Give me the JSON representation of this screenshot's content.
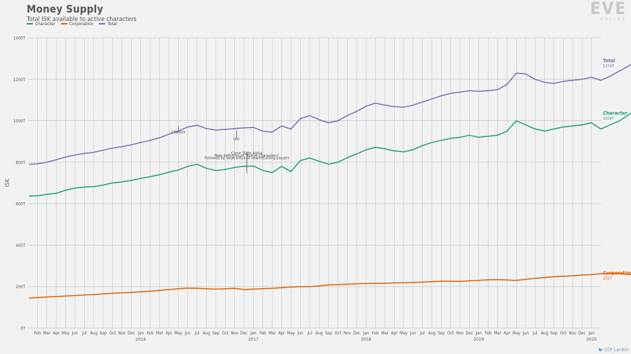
{
  "header": {
    "title": "Money Supply",
    "subtitle": "Total ISK available to active characters",
    "logo_text": "EVE",
    "logo_sub": "ONLINE",
    "credit": "CCP_Larrikin"
  },
  "chart_data": {
    "type": "line",
    "title": "Money Supply",
    "subtitle": "Total ISK available to active characters",
    "ylabel": "ISK",
    "xlabel": "",
    "ylim": [
      0,
      1400
    ],
    "y_ticks": [
      "0T",
      "200T",
      "400T",
      "600T",
      "800T",
      "1000T",
      "1200T",
      "1400T"
    ],
    "x_months": [
      "Feb",
      "Mar",
      "Apr",
      "May",
      "Jun",
      "Jul",
      "Aug",
      "Sep",
      "Oct",
      "Nov",
      "Dec",
      "Jan",
      "Feb",
      "Mar",
      "Apr",
      "May",
      "Jun",
      "Jul",
      "Aug",
      "Sep",
      "Oct",
      "Nov",
      "Dec",
      "Jan",
      "Feb",
      "Mar",
      "Apr",
      "May",
      "Jun",
      "Jul",
      "Aug",
      "Sep",
      "Oct",
      "Nov",
      "Dec",
      "Jan",
      "Feb",
      "Mar",
      "Apr",
      "May",
      "Jun",
      "Jul",
      "Aug",
      "Sep",
      "Oct",
      "Nov",
      "Dec",
      "Jan",
      "Feb",
      "Mar",
      "Apr",
      "May",
      "Jun",
      "Jul",
      "Aug",
      "Sep",
      "Oct",
      "Nov",
      "Dec",
      "Jan"
    ],
    "x_years": [
      {
        "label": "2016",
        "month_index": 11
      },
      {
        "label": "2017",
        "month_index": 23
      },
      {
        "label": "2018",
        "month_index": 35
      },
      {
        "label": "2019",
        "month_index": 47
      },
      {
        "label": "2020",
        "month_index": 59
      }
    ],
    "grid": true,
    "legend_position": "top-left",
    "series": [
      {
        "name": "Character",
        "color": "#1b9e77",
        "end_label": "Character",
        "end_value": "1026T",
        "values": [
          [
            -0.9,
            637
          ],
          [
            0,
            638
          ],
          [
            1,
            645
          ],
          [
            2,
            650
          ],
          [
            3,
            665
          ],
          [
            4,
            675
          ],
          [
            5,
            680
          ],
          [
            6,
            682
          ],
          [
            7,
            690
          ],
          [
            8,
            700
          ],
          [
            9,
            705
          ],
          [
            10,
            712
          ],
          [
            11,
            722
          ],
          [
            12,
            730
          ],
          [
            13,
            740
          ],
          [
            14,
            752
          ],
          [
            15,
            762
          ],
          [
            16,
            780
          ],
          [
            17,
            790
          ],
          [
            18,
            770
          ],
          [
            19,
            760
          ],
          [
            20,
            765
          ],
          [
            21,
            775
          ],
          [
            22,
            780
          ],
          [
            23,
            782
          ],
          [
            24,
            760
          ],
          [
            25,
            750
          ],
          [
            26,
            780
          ],
          [
            27,
            755
          ],
          [
            28,
            808
          ],
          [
            29,
            820
          ],
          [
            30,
            805
          ],
          [
            31,
            790
          ],
          [
            32,
            800
          ],
          [
            33,
            822
          ],
          [
            34,
            840
          ],
          [
            35,
            860
          ],
          [
            36,
            872
          ],
          [
            37,
            865
          ],
          [
            38,
            855
          ],
          [
            39,
            850
          ],
          [
            40,
            860
          ],
          [
            41,
            880
          ],
          [
            42,
            895
          ],
          [
            43,
            905
          ],
          [
            44,
            915
          ],
          [
            45,
            920
          ],
          [
            46,
            930
          ],
          [
            47,
            920
          ],
          [
            48,
            925
          ],
          [
            49,
            930
          ],
          [
            50,
            950
          ],
          [
            51,
            1000
          ],
          [
            52,
            980
          ],
          [
            53,
            960
          ],
          [
            54,
            950
          ],
          [
            55,
            960
          ],
          [
            56,
            970
          ],
          [
            57,
            975
          ],
          [
            58,
            980
          ],
          [
            59,
            990
          ],
          [
            60,
            960
          ],
          [
            61,
            980
          ],
          [
            62,
            1000
          ],
          [
            63,
            1030
          ],
          [
            64,
            1060
          ],
          [
            65,
            1080
          ],
          [
            66,
            1040
          ],
          [
            67,
            1060
          ],
          [
            68,
            1060
          ],
          [
            69,
            1080
          ],
          [
            70,
            1065
          ],
          [
            71,
            1105
          ],
          [
            72,
            1130
          ],
          [
            73,
            1100
          ],
          [
            74,
            1080
          ],
          [
            75,
            1060
          ],
          [
            76,
            1040
          ],
          [
            77,
            1000
          ],
          [
            78,
            975
          ],
          [
            79,
            970
          ],
          [
            80,
            975
          ],
          [
            81,
            980
          ],
          [
            82,
            965
          ],
          [
            83,
            1010
          ],
          [
            84,
            1026
          ]
        ]
      },
      {
        "name": "Corporation",
        "color": "#d95f02",
        "end_label": "Corporation",
        "end_value": "255T",
        "values": [
          [
            -0.9,
            145
          ],
          [
            0,
            147
          ],
          [
            1,
            150
          ],
          [
            2,
            152
          ],
          [
            3,
            155
          ],
          [
            4,
            157
          ],
          [
            5,
            160
          ],
          [
            6,
            162
          ],
          [
            7,
            165
          ],
          [
            8,
            168
          ],
          [
            9,
            170
          ],
          [
            10,
            172
          ],
          [
            11,
            175
          ],
          [
            12,
            178
          ],
          [
            13,
            182
          ],
          [
            14,
            186
          ],
          [
            15,
            190
          ],
          [
            16,
            193
          ],
          [
            17,
            192
          ],
          [
            18,
            190
          ],
          [
            19,
            188
          ],
          [
            20,
            190
          ],
          [
            21,
            192
          ],
          [
            22,
            186
          ],
          [
            23,
            188
          ],
          [
            24,
            190
          ],
          [
            25,
            192
          ],
          [
            26,
            195
          ],
          [
            27,
            198
          ],
          [
            28,
            200
          ],
          [
            29,
            200
          ],
          [
            30,
            203
          ],
          [
            31,
            208
          ],
          [
            32,
            210
          ],
          [
            33,
            212
          ],
          [
            34,
            214
          ],
          [
            35,
            215
          ],
          [
            36,
            216
          ],
          [
            37,
            217
          ],
          [
            38,
            218
          ],
          [
            39,
            219
          ],
          [
            40,
            220
          ],
          [
            41,
            222
          ],
          [
            42,
            224
          ],
          [
            43,
            226
          ],
          [
            44,
            226
          ],
          [
            45,
            225
          ],
          [
            46,
            228
          ],
          [
            47,
            230
          ],
          [
            48,
            233
          ],
          [
            49,
            234
          ],
          [
            50,
            232
          ],
          [
            51,
            230
          ],
          [
            52,
            235
          ],
          [
            53,
            240
          ],
          [
            54,
            244
          ],
          [
            55,
            248
          ],
          [
            56,
            250
          ],
          [
            57,
            252
          ],
          [
            58,
            256
          ],
          [
            59,
            258
          ],
          [
            60,
            262
          ],
          [
            61,
            262
          ],
          [
            62,
            264
          ],
          [
            63,
            258
          ],
          [
            64,
            262
          ],
          [
            65,
            265
          ],
          [
            66,
            264
          ],
          [
            67,
            262
          ],
          [
            68,
            262
          ],
          [
            69,
            265
          ],
          [
            70,
            268
          ],
          [
            71,
            270
          ],
          [
            72,
            272
          ],
          [
            73,
            266
          ],
          [
            74,
            262
          ],
          [
            75,
            258
          ],
          [
            76,
            256
          ],
          [
            77,
            255
          ],
          [
            78,
            254
          ],
          [
            79,
            254
          ],
          [
            80,
            255
          ],
          [
            81,
            255
          ],
          [
            82,
            254
          ],
          [
            83,
            255
          ],
          [
            84,
            255
          ]
        ]
      },
      {
        "name": "Total",
        "color": "#7570b3",
        "end_label": "Total",
        "end_value": "1279T",
        "values": [
          [
            -0.9,
            790
          ],
          [
            0,
            792
          ],
          [
            1,
            800
          ],
          [
            2,
            812
          ],
          [
            3,
            825
          ],
          [
            4,
            835
          ],
          [
            5,
            842
          ],
          [
            6,
            848
          ],
          [
            7,
            858
          ],
          [
            8,
            868
          ],
          [
            9,
            875
          ],
          [
            10,
            884
          ],
          [
            11,
            895
          ],
          [
            12,
            905
          ],
          [
            13,
            918
          ],
          [
            14,
            935
          ],
          [
            15,
            950
          ],
          [
            16,
            970
          ],
          [
            17,
            978
          ],
          [
            18,
            962
          ],
          [
            19,
            955
          ],
          [
            20,
            958
          ],
          [
            21,
            962
          ],
          [
            22,
            966
          ],
          [
            23,
            968
          ],
          [
            24,
            950
          ],
          [
            25,
            945
          ],
          [
            26,
            975
          ],
          [
            27,
            960
          ],
          [
            28,
            1010
          ],
          [
            29,
            1025
          ],
          [
            30,
            1005
          ],
          [
            31,
            990
          ],
          [
            32,
            1000
          ],
          [
            33,
            1025
          ],
          [
            34,
            1045
          ],
          [
            35,
            1070
          ],
          [
            36,
            1085
          ],
          [
            37,
            1075
          ],
          [
            38,
            1068
          ],
          [
            39,
            1065
          ],
          [
            40,
            1075
          ],
          [
            41,
            1090
          ],
          [
            42,
            1105
          ],
          [
            43,
            1120
          ],
          [
            44,
            1132
          ],
          [
            45,
            1138
          ],
          [
            46,
            1145
          ],
          [
            47,
            1142
          ],
          [
            48,
            1145
          ],
          [
            49,
            1150
          ],
          [
            50,
            1175
          ],
          [
            51,
            1230
          ],
          [
            52,
            1225
          ],
          [
            53,
            1200
          ],
          [
            54,
            1185
          ],
          [
            55,
            1180
          ],
          [
            56,
            1190
          ],
          [
            57,
            1195
          ],
          [
            58,
            1200
          ],
          [
            59,
            1210
          ],
          [
            60,
            1195
          ],
          [
            61,
            1215
          ],
          [
            62,
            1240
          ],
          [
            63,
            1265
          ],
          [
            64,
            1295
          ],
          [
            65,
            1320
          ],
          [
            66,
            1290
          ],
          [
            67,
            1310
          ],
          [
            68,
            1310
          ],
          [
            69,
            1335
          ],
          [
            70,
            1320
          ],
          [
            71,
            1370
          ],
          [
            72,
            1405
          ],
          [
            73,
            1375
          ],
          [
            74,
            1350
          ],
          [
            75,
            1320
          ],
          [
            76,
            1300
          ],
          [
            77,
            1265
          ],
          [
            78,
            1235
          ],
          [
            79,
            1225
          ],
          [
            80,
            1228
          ],
          [
            81,
            1232
          ],
          [
            82,
            1215
          ],
          [
            83,
            1265
          ],
          [
            84,
            1279
          ]
        ]
      }
    ],
    "annotations": [
      {
        "text": "Citadels",
        "x": 15.0,
        "y": 940,
        "line_from": 975
      },
      {
        "text": "(W)",
        "x": 21.2,
        "y": 905,
        "line_from": 955
      },
      {
        "text": "Clone State Alpha",
        "x": 22.3,
        "y": 838,
        "line_from": 780
      },
      {
        "text": "New definition of \"Active Characters\"",
        "x": 22.3,
        "y": 826,
        "line_from": 760
      },
      {
        "text": "Followed by large influx of new/returning players",
        "x": 22.3,
        "y": 814,
        "line_from": 745
      }
    ]
  }
}
